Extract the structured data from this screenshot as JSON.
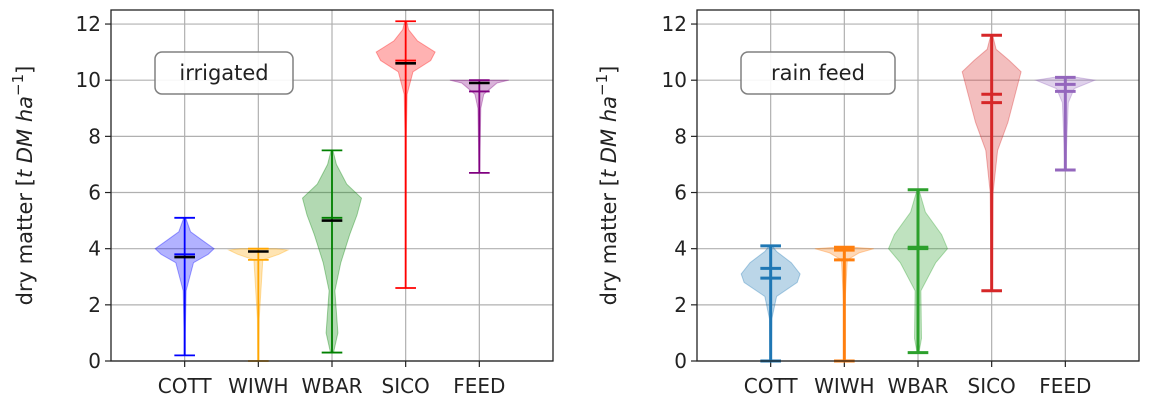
{
  "chart_data": [
    {
      "type": "violin",
      "annotation": "irrigated",
      "ylabel_prefix": "dry matter [",
      "ylabel_italic": "t DM ha",
      "ylabel_exp": "−1",
      "ylabel_suffix": "]",
      "ylim": [
        0,
        12.5
      ],
      "yticks": [
        "0",
        "2",
        "4",
        "6",
        "8",
        "10",
        "12"
      ],
      "grid": true,
      "categories": [
        "COTT",
        "WIWH",
        "WBAR",
        "SICO",
        "FEED"
      ],
      "colors": [
        "#0000ff",
        "#ffa500",
        "#008000",
        "#ff0000",
        "#800080"
      ],
      "median_color": "#000000",
      "series": [
        {
          "min": 0.2,
          "max": 5.1,
          "mean": 3.8,
          "median": 3.7,
          "density": [
            [
              0.2,
              0.02
            ],
            [
              1.0,
              0.02
            ],
            [
              2.5,
              0.05
            ],
            [
              3.5,
              0.3
            ],
            [
              3.8,
              0.8
            ],
            [
              4.0,
              1.0
            ],
            [
              4.3,
              0.6
            ],
            [
              4.6,
              0.2
            ],
            [
              5.1,
              0.03
            ]
          ]
        },
        {
          "min": 0.0,
          "max": 4.0,
          "mean": 3.6,
          "median": 3.9,
          "density": [
            [
              0.0,
              0.02
            ],
            [
              1.5,
              0.03
            ],
            [
              3.6,
              0.15
            ],
            [
              3.8,
              0.7
            ],
            [
              3.95,
              1.0
            ],
            [
              4.0,
              0.6
            ]
          ]
        },
        {
          "min": 0.3,
          "max": 7.5,
          "mean": 5.1,
          "median": 5.0,
          "density": [
            [
              0.3,
              0.05
            ],
            [
              1.0,
              0.2
            ],
            [
              2.5,
              0.1
            ],
            [
              3.5,
              0.3
            ],
            [
              4.5,
              0.6
            ],
            [
              5.2,
              0.85
            ],
            [
              5.8,
              1.0
            ],
            [
              6.3,
              0.5
            ],
            [
              7.0,
              0.15
            ],
            [
              7.5,
              0.03
            ]
          ]
        },
        {
          "min": 2.6,
          "max": 12.1,
          "mean": 10.7,
          "median": 10.6,
          "density": [
            [
              2.6,
              0.01
            ],
            [
              8.0,
              0.02
            ],
            [
              9.5,
              0.05
            ],
            [
              10.3,
              0.25
            ],
            [
              10.7,
              0.85
            ],
            [
              11.0,
              1.0
            ],
            [
              11.4,
              0.4
            ],
            [
              11.8,
              0.1
            ],
            [
              12.1,
              0.03
            ]
          ]
        },
        {
          "min": 6.7,
          "max": 10.0,
          "mean": 9.6,
          "median": 9.9,
          "density": [
            [
              6.7,
              0.01
            ],
            [
              9.0,
              0.05
            ],
            [
              9.5,
              0.15
            ],
            [
              9.9,
              0.6
            ],
            [
              10.0,
              1.0
            ]
          ]
        }
      ]
    },
    {
      "type": "violin",
      "annotation": "rain feed",
      "ylabel_prefix": "dry matter [",
      "ylabel_italic": "t DM ha",
      "ylabel_exp": "−1",
      "ylabel_suffix": "]",
      "ylim": [
        0,
        12.5
      ],
      "yticks": [
        "0",
        "2",
        "4",
        "6",
        "8",
        "10",
        "12"
      ],
      "grid": true,
      "categories": [
        "COTT",
        "WIWH",
        "WBAR",
        "SICO",
        "FEED"
      ],
      "colors": [
        "#1f77b4",
        "#ff7f0e",
        "#2ca02c",
        "#d62728",
        "#9467bd"
      ],
      "median_color": null,
      "series": [
        {
          "min": 0.0,
          "max": 4.1,
          "mean": 3.3,
          "median": 2.95,
          "density": [
            [
              0.0,
              0.02
            ],
            [
              1.5,
              0.04
            ],
            [
              2.3,
              0.2
            ],
            [
              2.8,
              0.9
            ],
            [
              3.1,
              1.0
            ],
            [
              3.5,
              0.7
            ],
            [
              3.9,
              0.2
            ],
            [
              4.1,
              0.05
            ]
          ]
        },
        {
          "min": 0.0,
          "max": 4.05,
          "mean": 3.6,
          "median": 3.95,
          "density": [
            [
              0.0,
              0.02
            ],
            [
              2.0,
              0.02
            ],
            [
              3.6,
              0.1
            ],
            [
              3.85,
              0.5
            ],
            [
              4.0,
              1.0
            ],
            [
              4.05,
              0.3
            ]
          ]
        },
        {
          "min": 0.3,
          "max": 6.1,
          "mean": 4.0,
          "median": 4.05,
          "density": [
            [
              0.3,
              0.03
            ],
            [
              0.8,
              0.12
            ],
            [
              2.5,
              0.1
            ],
            [
              3.5,
              0.6
            ],
            [
              4.0,
              1.0
            ],
            [
              4.5,
              0.8
            ],
            [
              5.3,
              0.25
            ],
            [
              6.1,
              0.03
            ]
          ]
        },
        {
          "min": 2.5,
          "max": 11.6,
          "mean": 9.2,
          "median": 9.5,
          "density": [
            [
              2.5,
              0.02
            ],
            [
              6.0,
              0.05
            ],
            [
              7.5,
              0.2
            ],
            [
              8.5,
              0.55
            ],
            [
              9.5,
              0.8
            ],
            [
              10.3,
              1.0
            ],
            [
              10.7,
              0.6
            ],
            [
              11.1,
              0.15
            ],
            [
              11.6,
              0.03
            ]
          ]
        },
        {
          "min": 6.8,
          "max": 10.1,
          "mean": 9.6,
          "median": 9.85,
          "density": [
            [
              6.8,
              0.01
            ],
            [
              9.2,
              0.1
            ],
            [
              9.7,
              0.3
            ],
            [
              10.0,
              1.0
            ],
            [
              10.1,
              0.4
            ]
          ]
        }
      ]
    }
  ]
}
